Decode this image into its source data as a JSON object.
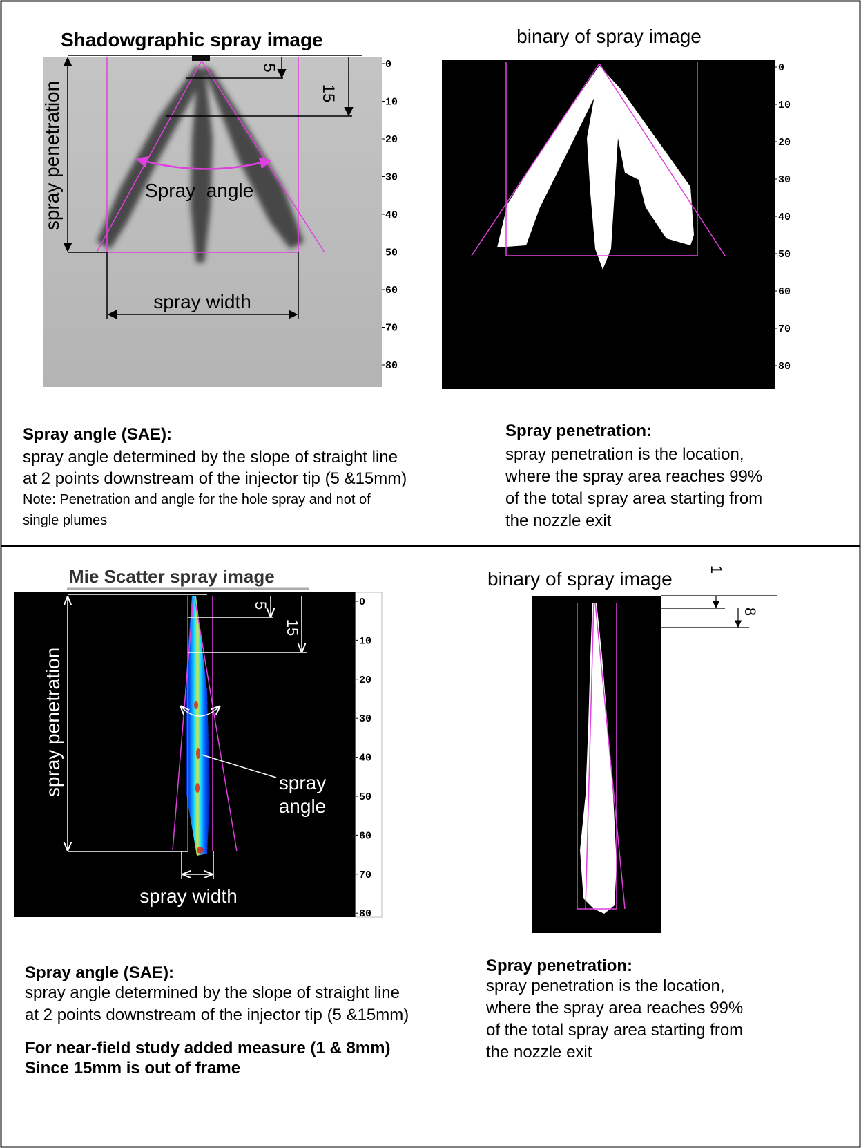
{
  "top_panel": {
    "shadowgraph": {
      "title": "Shadowgraphic spray image",
      "dim_5": "5",
      "dim_15": "15",
      "penetration_label": "spray penetration",
      "angle_label": "Spray  angle",
      "width_label": "spray width",
      "scale": [
        0,
        10,
        20,
        30,
        40,
        50,
        60,
        70,
        80
      ]
    },
    "binary": {
      "title": "binary of spray image",
      "scale": [
        0,
        10,
        20,
        30,
        40,
        50,
        60,
        70,
        80
      ]
    },
    "angle_note": {
      "heading": "Spray angle (SAE):",
      "lines": [
        "spray angle determined by the slope of straight line",
        "at 2 points downstream of the injector tip (5 &15mm)"
      ],
      "note_lines": [
        "Note: Penetration and angle for the hole spray and not of",
        "single plumes"
      ]
    },
    "penetration_note": {
      "heading": "Spray penetration:",
      "lines": [
        "spray penetration is the location,",
        "where the spray area reaches 99%",
        "of the total spray area starting from",
        "the nozzle exit"
      ]
    }
  },
  "bottom_panel": {
    "mie": {
      "title": "Mie Scatter spray image",
      "dim_5": "5",
      "dim_15": "15",
      "penetration_label": "spray penetration",
      "angle_label_lines": [
        "spray",
        "angle"
      ],
      "width_label": "spray width",
      "scale": [
        0,
        10,
        20,
        30,
        40,
        50,
        60,
        70,
        80
      ]
    },
    "binary": {
      "title": "binary of spray image",
      "dim_1": "1",
      "dim_8": "8"
    },
    "angle_note": {
      "heading": "Spray angle (SAE):",
      "lines": [
        "spray angle determined by the slope of straight line",
        "at 2 points downstream of the injector tip (5 &15mm)"
      ],
      "added_lines": [
        "For near-field study added measure (1 & 8mm)",
        "Since 15mm is out of frame"
      ]
    },
    "penetration_note": {
      "heading": "Spray penetration:",
      "lines": [
        "spray penetration is the location,",
        "where the spray area reaches 99%",
        "of the total spray area starting from",
        "the nozzle exit"
      ]
    }
  }
}
